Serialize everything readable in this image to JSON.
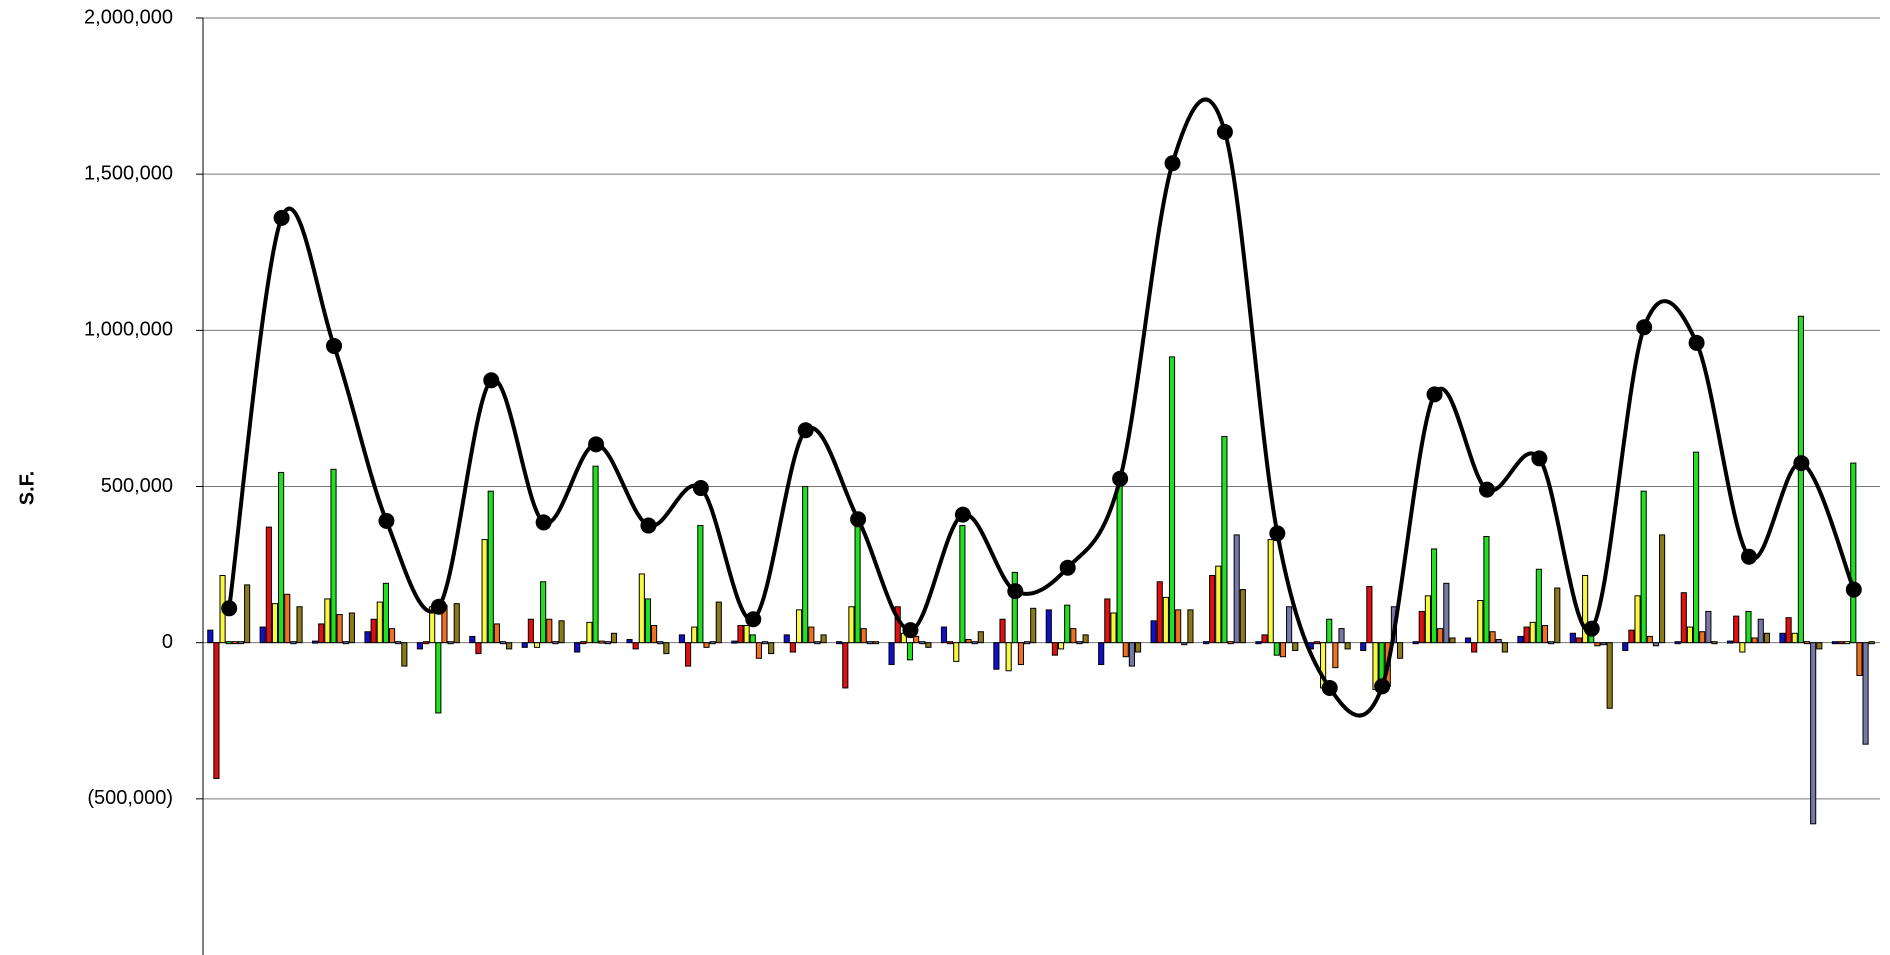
{
  "chart_data": {
    "type": "bar",
    "ylabel": "S.F.",
    "categories": [
      null,
      null,
      null,
      null,
      null,
      null,
      null,
      null,
      null,
      null,
      null,
      null,
      null,
      null,
      null,
      null,
      null,
      null,
      null,
      null,
      null,
      null,
      null,
      null,
      null,
      null,
      null,
      null,
      null,
      null,
      null,
      null
    ],
    "ylim": [
      -1000000,
      2000000
    ],
    "yticks": [
      {
        "value": -500000,
        "label": "(500,000)"
      },
      0,
      {
        "value": 500000,
        "label": "500,000"
      },
      {
        "value": 1000000,
        "label": "1,000,000"
      },
      {
        "value": 1500000,
        "label": "1,500,000"
      },
      {
        "value": 2000000,
        "label": "2,000,000"
      }
    ],
    "grid": true,
    "series": [
      {
        "type": "bar",
        "color": "#1010c8",
        "values": [
          40000,
          50000,
          5000,
          35000,
          -20000,
          20000,
          -15000,
          -30000,
          10000,
          25000,
          5000,
          25000,
          0,
          -70000,
          50000,
          -85000,
          105000,
          -70000,
          70000,
          0,
          0,
          -20000,
          -25000,
          0,
          15000,
          20000,
          30000,
          -25000,
          0,
          5000,
          30000,
          0
        ]
      },
      {
        "type": "bar",
        "color": "#e01010",
        "values": [
          -435000,
          370000,
          60000,
          75000,
          0,
          -35000,
          75000,
          0,
          -20000,
          -75000,
          55000,
          -30000,
          -145000,
          115000,
          0,
          75000,
          -40000,
          140000,
          195000,
          215000,
          25000,
          0,
          180000,
          100000,
          -30000,
          50000,
          15000,
          40000,
          160000,
          85000,
          80000,
          0
        ]
      },
      {
        "type": "bar",
        "color": "#f8f840",
        "values": [
          215000,
          125000,
          140000,
          130000,
          115000,
          330000,
          -15000,
          65000,
          220000,
          50000,
          55000,
          105000,
          115000,
          30000,
          -60000,
          -90000,
          -20000,
          95000,
          145000,
          245000,
          330000,
          -145000,
          -150000,
          150000,
          135000,
          65000,
          215000,
          150000,
          50000,
          -30000,
          30000,
          0
        ]
      },
      {
        "type": "bar",
        "color": "#20e020",
        "values": [
          0,
          545000,
          555000,
          190000,
          -225000,
          485000,
          195000,
          565000,
          140000,
          375000,
          25000,
          500000,
          390000,
          -55000,
          375000,
          225000,
          120000,
          520000,
          915000,
          660000,
          -40000,
          75000,
          -155000,
          300000,
          340000,
          235000,
          40000,
          485000,
          610000,
          100000,
          1045000,
          575000
        ]
      },
      {
        "type": "bar",
        "color": "#f07020",
        "values": [
          0,
          155000,
          90000,
          45000,
          120000,
          60000,
          75000,
          5000,
          55000,
          -15000,
          -50000,
          50000,
          45000,
          20000,
          10000,
          -70000,
          45000,
          -45000,
          105000,
          0,
          -45000,
          -80000,
          -140000,
          45000,
          35000,
          55000,
          -10000,
          20000,
          35000,
          15000,
          0,
          -105000
        ]
      },
      {
        "type": "bar",
        "color": "#7878a8",
        "values": [
          0,
          0,
          0,
          0,
          0,
          0,
          0,
          0,
          0,
          0,
          0,
          0,
          0,
          0,
          0,
          0,
          0,
          -75000,
          -5000,
          345000,
          115000,
          45000,
          115000,
          190000,
          10000,
          0,
          -5000,
          -10000,
          100000,
          75000,
          -580000,
          -325000
        ]
      },
      {
        "type": "bar",
        "color": "#8a7a18",
        "values": [
          185000,
          115000,
          95000,
          -75000,
          125000,
          -20000,
          70000,
          30000,
          -35000,
          130000,
          -35000,
          25000,
          0,
          -15000,
          35000,
          110000,
          25000,
          -30000,
          105000,
          170000,
          -25000,
          -20000,
          -50000,
          15000,
          -30000,
          175000,
          -210000,
          345000,
          0,
          30000,
          -20000,
          0
        ]
      },
      {
        "type": "line",
        "color": "#000000",
        "values": [
          110000,
          1360000,
          950000,
          390000,
          115000,
          840000,
          385000,
          635000,
          375000,
          495000,
          75000,
          680000,
          395000,
          40000,
          410000,
          165000,
          240000,
          525000,
          1535000,
          1635000,
          350000,
          -145000,
          -140000,
          795000,
          490000,
          590000,
          45000,
          1010000,
          960000,
          275000,
          575000,
          170000
        ]
      }
    ]
  }
}
